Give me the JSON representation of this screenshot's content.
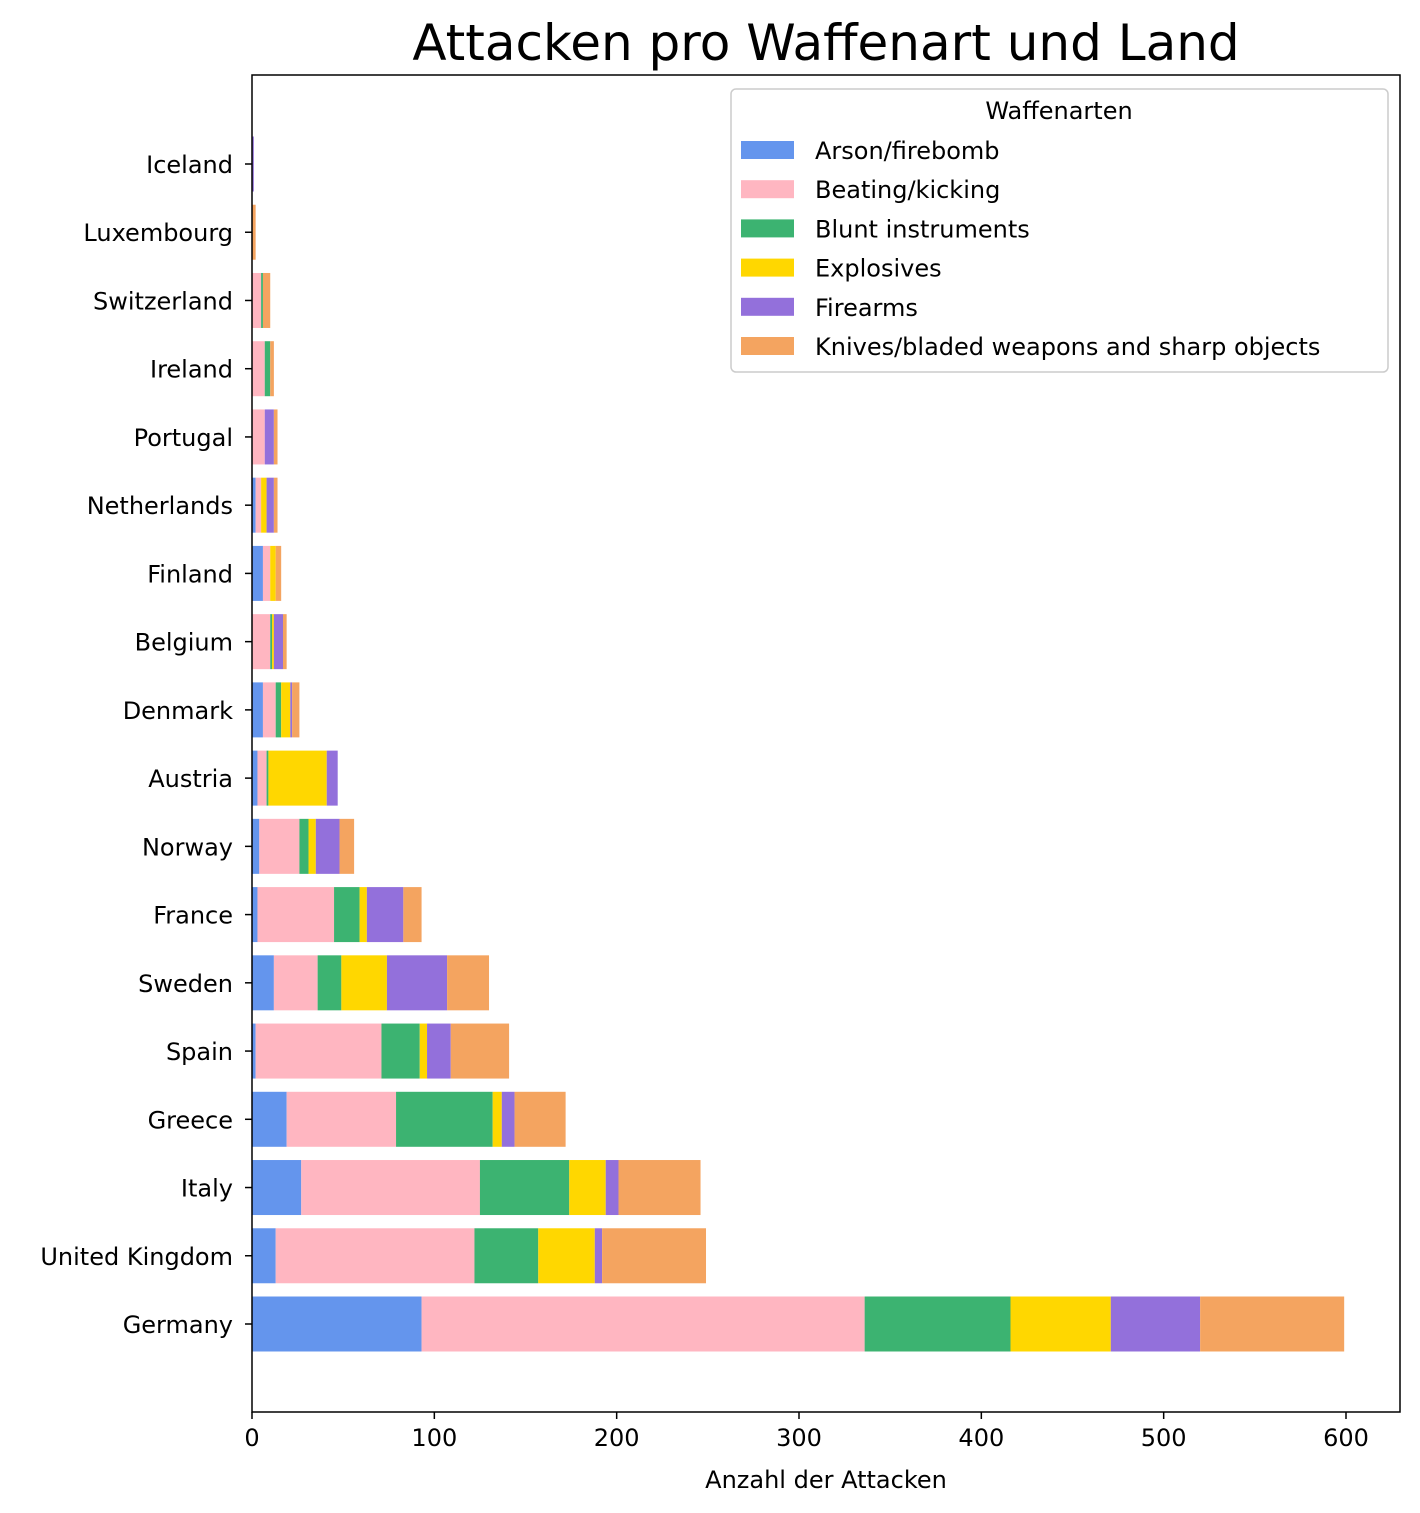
{
  "chart_data": {
    "type": "bar",
    "orientation": "horizontal",
    "stacked": true,
    "title": "Attacken pro Waffenart und Land",
    "xlabel": "Anzahl der Attacken",
    "ylabel": "",
    "xlim": [
      0,
      630
    ],
    "xticks": [
      0,
      100,
      200,
      300,
      400,
      500,
      600
    ],
    "grid": false,
    "legend": {
      "title": "Waffenarten",
      "position": "top-right"
    },
    "categories": [
      "Iceland",
      "Luxembourg",
      "Switzerland",
      "Ireland",
      "Portugal",
      "Netherlands",
      "Finland",
      "Belgium",
      "Denmark",
      "Austria",
      "Norway",
      "France",
      "Sweden",
      "Spain",
      "Greece",
      "Italy",
      "United Kingdom",
      "Germany"
    ],
    "series": [
      {
        "name": "Arson/firebomb",
        "color": "#6495ED",
        "values": [
          0,
          0,
          0,
          0,
          0,
          2,
          6,
          0,
          6,
          3,
          4,
          3,
          12,
          2,
          19,
          27,
          13,
          93
        ]
      },
      {
        "name": "Beating/kicking",
        "color": "#FFB6C1",
        "values": [
          0,
          0,
          5,
          7,
          7,
          3,
          4,
          10,
          7,
          5,
          22,
          42,
          24,
          69,
          60,
          98,
          109,
          243
        ]
      },
      {
        "name": "Blunt instruments",
        "color": "#3CB371",
        "values": [
          0,
          0,
          1,
          3,
          0,
          0,
          0,
          1,
          3,
          1,
          5,
          14,
          13,
          21,
          53,
          49,
          35,
          80
        ]
      },
      {
        "name": "Explosives",
        "color": "#FFD700",
        "values": [
          0,
          0,
          0,
          0,
          0,
          3,
          3,
          1,
          5,
          32,
          4,
          4,
          25,
          4,
          5,
          20,
          31,
          55
        ]
      },
      {
        "name": "Firearms",
        "color": "#9370DB",
        "values": [
          1,
          0,
          0,
          0,
          5,
          4,
          0,
          5,
          1,
          6,
          13,
          20,
          33,
          13,
          7,
          7,
          4,
          49
        ]
      },
      {
        "name": "Knives/bladed weapons and sharp objects",
        "color": "#F4A460",
        "values": [
          0,
          2,
          4,
          2,
          2,
          2,
          3,
          2,
          4,
          0,
          8,
          10,
          23,
          32,
          28,
          45,
          57,
          79
        ]
      }
    ]
  }
}
